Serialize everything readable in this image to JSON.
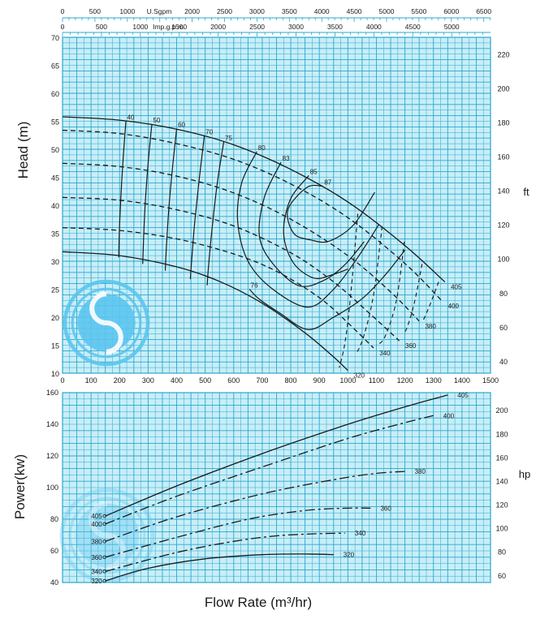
{
  "colors": {
    "grid_bg": "#c8eef7",
    "grid_line": "#2aa7cf",
    "curve": "#1a1a1a",
    "logo": "#5bc4ee"
  },
  "icons": {
    "logo": "swirl-logo"
  },
  "chart_data": [
    {
      "type": "line",
      "title": "",
      "xlabel": "",
      "ylabel": "Head (m)",
      "y2label": "ft",
      "xlim": [
        0,
        1500
      ],
      "ylim": [
        10,
        70
      ],
      "y2lim": [
        32.8,
        229.7
      ],
      "x_ticks": [
        "0",
        "100",
        "200",
        "300",
        "400",
        "500",
        "600",
        "700",
        "800",
        "900",
        "1000",
        "1100",
        "1200",
        "1300",
        "1400",
        "1500"
      ],
      "y_ticks": [
        "10",
        "15",
        "20",
        "25",
        "30",
        "35",
        "40",
        "45",
        "50",
        "55",
        "60",
        "65",
        "70"
      ],
      "y2_ticks": [
        "40",
        "60",
        "80",
        "100",
        "120",
        "140",
        "160",
        "180",
        "200",
        "220"
      ],
      "top_axis_1": {
        "label": "U.Sgpm",
        "ticks": [
          "0",
          "500",
          "1000",
          "2000",
          "2500",
          "3000",
          "3500",
          "4000",
          "4500",
          "5000",
          "5500",
          "6000",
          "6500"
        ]
      },
      "top_axis_2": {
        "label": "Imp.g.p.m",
        "ticks": [
          "0",
          "500",
          "1000",
          "1500",
          "2000",
          "2500",
          "3000",
          "3500",
          "4000",
          "4500",
          "5000"
        ]
      },
      "grid": true,
      "series": [
        {
          "name": "405",
          "style": "solid",
          "x": [
            0,
            200,
            400,
            600,
            800,
            1000,
            1200,
            1340
          ],
          "y": [
            55.8,
            55.2,
            53.6,
            50.8,
            46.4,
            40.6,
            32.8,
            26.3
          ]
        },
        {
          "name": "400",
          "style": "dashed",
          "x": [
            0,
            200,
            400,
            600,
            800,
            1000,
            1200,
            1330
          ],
          "y": [
            53.4,
            52.8,
            51.0,
            48.2,
            43.8,
            37.8,
            29.6,
            22.9
          ]
        },
        {
          "name": "380",
          "style": "dashed",
          "x": [
            0,
            200,
            400,
            600,
            800,
            1000,
            1150,
            1250
          ],
          "y": [
            47.5,
            46.9,
            45.2,
            42.2,
            37.5,
            31.0,
            24.5,
            19.3
          ]
        },
        {
          "name": "360",
          "style": "dashed",
          "x": [
            0,
            200,
            400,
            600,
            800,
            950,
            1080,
            1180
          ],
          "y": [
            41.4,
            40.9,
            39.2,
            36.3,
            31.5,
            26.3,
            20.5,
            15.8
          ]
        },
        {
          "name": "340",
          "style": "dashed",
          "x": [
            0,
            200,
            400,
            600,
            750,
            900,
            1000,
            1090
          ],
          "y": [
            36.0,
            35.5,
            34.0,
            31.3,
            28.2,
            23.5,
            19.0,
            14.5
          ]
        },
        {
          "name": "320",
          "style": "solid",
          "x": [
            0,
            200,
            400,
            550,
            700,
            850,
            950,
            1000
          ],
          "y": [
            31.7,
            31.0,
            29.0,
            26.4,
            22.5,
            17.2,
            12.9,
            10.5
          ]
        }
      ],
      "iso_efficiency": [
        {
          "name": "40",
          "x": [
            222,
            212,
            204,
            199,
            197
          ],
          "y": [
            55.0,
            48.0,
            41.0,
            35.0,
            30.7
          ]
        },
        {
          "name": "50",
          "x": [
            313,
            300,
            290,
            284,
            281
          ],
          "y": [
            54.5,
            47.5,
            40.5,
            34.0,
            29.5
          ]
        },
        {
          "name": "60",
          "x": [
            400,
            385,
            372,
            364,
            360
          ],
          "y": [
            53.7,
            46.5,
            39.0,
            32.5,
            28.3
          ]
        },
        {
          "name": "70",
          "x": [
            497,
            480,
            464,
            453,
            448
          ],
          "y": [
            52.4,
            45.0,
            37.3,
            30.5,
            26.8
          ]
        },
        {
          "name": "75",
          "x": [
            565,
            543,
            525,
            512,
            507
          ],
          "y": [
            51.3,
            44.2,
            36.2,
            29.3,
            25.7
          ]
        },
        {
          "name": "85",
          "x": [
            863,
            798,
            775,
            808,
            880,
            946,
            1000
          ],
          "y": [
            45.3,
            41.0,
            35.0,
            29.8,
            27.0,
            27.6,
            28.6
          ]
        },
        {
          "name": "83",
          "x": [
            766,
            708,
            690,
            738,
            830,
            920,
            992,
            1057
          ],
          "y": [
            47.7,
            41.5,
            34.5,
            29.5,
            25.6,
            26.7,
            29.5,
            33.5
          ]
        },
        {
          "name": "80",
          "x": [
            681,
            628,
            614,
            650,
            737,
            860,
            950,
            1035,
            1108
          ],
          "y": [
            49.6,
            44.0,
            37.0,
            30.0,
            25.0,
            21.8,
            25.0,
            30.7,
            36.5
          ]
        },
        {
          "name": "76",
          "x": [
            655,
            690,
            760,
            860,
            950,
            1050,
            1130,
            1200
          ],
          "y": [
            25.0,
            23.2,
            20.8,
            17.8,
            20.0,
            23.3,
            27.5,
            32.0
          ]
        },
        {
          "name": "87",
          "x": [
            913,
            857,
            790,
            810,
            870,
            935,
            1020,
            1094
          ],
          "y": [
            43.4,
            43.2,
            39.2,
            35.0,
            33.8,
            33.6,
            36.5,
            42.3
          ]
        }
      ],
      "npsh_lines": [
        {
          "x": [
            1035,
            1010,
            990,
            970
          ],
          "y": [
            38.5,
            24.0,
            15.5,
            11.0
          ]
        },
        {
          "x": [
            1120,
            1090,
            1055,
            1030
          ],
          "y": [
            36.2,
            24.0,
            16.5,
            13.5
          ]
        },
        {
          "x": [
            1198,
            1170,
            1130,
            1100
          ],
          "y": [
            33.5,
            23.0,
            16.5,
            15.0
          ]
        },
        {
          "x": [
            1260,
            1235,
            1210,
            1195
          ],
          "y": [
            29.5,
            23.0,
            18.5,
            17.0
          ]
        },
        {
          "x": [
            1318,
            1290,
            1265
          ],
          "y": [
            26.3,
            22.5,
            19.5
          ]
        }
      ]
    },
    {
      "type": "line",
      "title": "",
      "xlabel": "Flow Rate (m³/hr)",
      "ylabel": "Power(kw)",
      "y2label": "hp",
      "xlim": [
        0,
        1500
      ],
      "ylim": [
        40,
        160
      ],
      "y_ticks": [
        "40",
        "60",
        "80",
        "100",
        "120",
        "140",
        "160"
      ],
      "y2_ticks": [
        "60",
        "80",
        "100",
        "120",
        "140",
        "160",
        "180",
        "200"
      ],
      "grid": true,
      "series": [
        {
          "name": "405",
          "style": "solid",
          "x": [
            150,
            400,
            700,
            1000,
            1200,
            1350
          ],
          "y": [
            82.0,
            101.0,
            121.5,
            140.0,
            151.0,
            158.5
          ]
        },
        {
          "name": "400",
          "style": "dashed",
          "x": [
            150,
            400,
            700,
            1000,
            1200,
            1300
          ],
          "y": [
            77.0,
            94.5,
            113.0,
            131.0,
            141.0,
            145.5
          ]
        },
        {
          "name": "380",
          "style": "dashed",
          "x": [
            150,
            400,
            700,
            950,
            1100,
            1200
          ],
          "y": [
            66.0,
            81.5,
            96.0,
            105.0,
            109.0,
            110.2
          ]
        },
        {
          "name": "360",
          "style": "dashed",
          "x": [
            150,
            400,
            650,
            850,
            1000,
            1080
          ],
          "y": [
            56.0,
            68.5,
            80.0,
            85.5,
            87.0,
            87.0
          ]
        },
        {
          "name": "340",
          "style": "dashed",
          "x": [
            150,
            400,
            600,
            750,
            890,
            990
          ],
          "y": [
            47.0,
            59.0,
            66.0,
            69.5,
            70.8,
            71.2
          ]
        },
        {
          "name": "320",
          "style": "solid",
          "x": [
            150,
            300,
            500,
            700,
            850,
            950
          ],
          "y": [
            41.0,
            49.0,
            55.0,
            57.6,
            58.0,
            57.6
          ]
        }
      ],
      "legend_order": [
        "405",
        "400",
        "380",
        "360",
        "340",
        "320"
      ]
    }
  ]
}
